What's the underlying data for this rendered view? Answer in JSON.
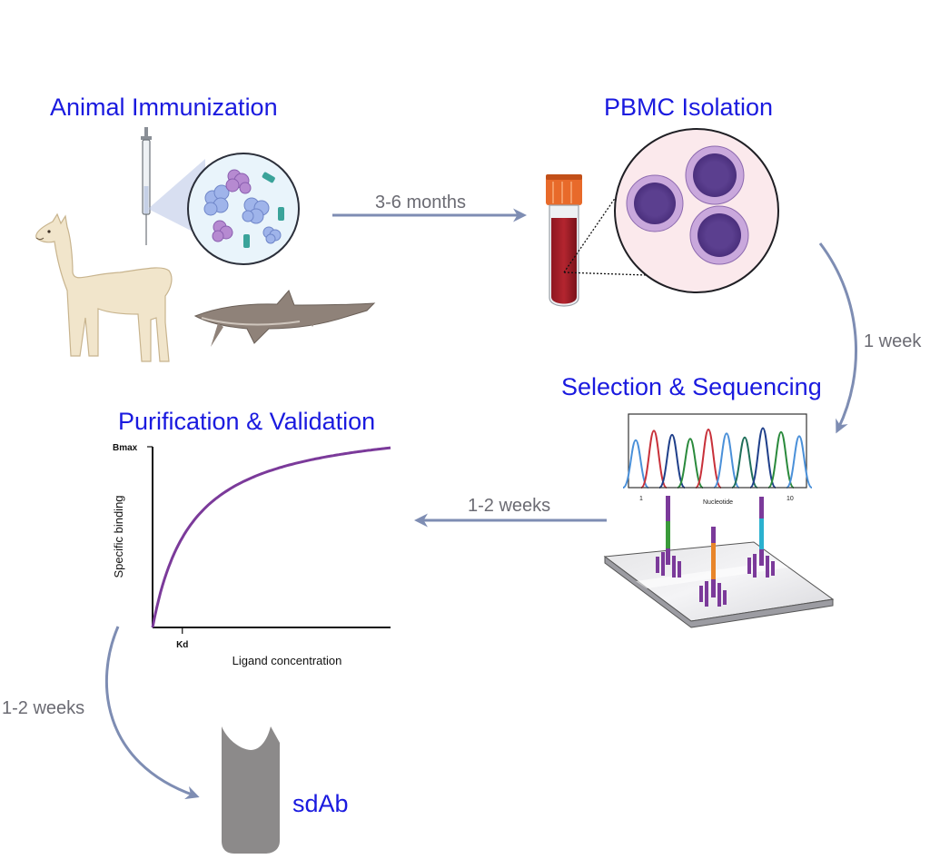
{
  "steps": {
    "immunization": "Animal Immunization",
    "pbmc": "PBMC Isolation",
    "selection": "Selection & Sequencing",
    "purification": "Purification & Validation",
    "product": "sdAb"
  },
  "durations": {
    "immunization_to_pbmc": "3-6 months",
    "pbmc_to_selection": "1 week",
    "selection_to_purification": "1-2 weeks",
    "purification_to_sdab": "1-2 weeks"
  },
  "chromatogram": {
    "xlabel": "Nucleotide",
    "tick_start": "1",
    "tick_end": "10",
    "colors": [
      "#4a90d9",
      "#c8313a",
      "#1f3f8a",
      "#2a8a3c",
      "#c8313a",
      "#4a90d9",
      "#1f6f5a",
      "#1f3f8a",
      "#2a8a3c",
      "#4a90d9"
    ]
  },
  "chart_data": {
    "type": "line",
    "xlabel": "Ligand concentration",
    "ylabel": "Specific binding",
    "y_tick_label": "Bmax",
    "x_tick_label": "Kd",
    "curve": "saturation binding (hyperbolic)",
    "kd": 1,
    "bmax": 1,
    "xlim": [
      0,
      6
    ],
    "ylim": [
      0,
      1
    ],
    "line_color": "#7b3a9a"
  },
  "colors": {
    "title": "#1a1adf",
    "arrow": "#7e8db3",
    "cell": "#5b3f8f",
    "blood": "#9b1b24",
    "cap": "#e86a2a",
    "sdab": "#8c8a8a"
  }
}
